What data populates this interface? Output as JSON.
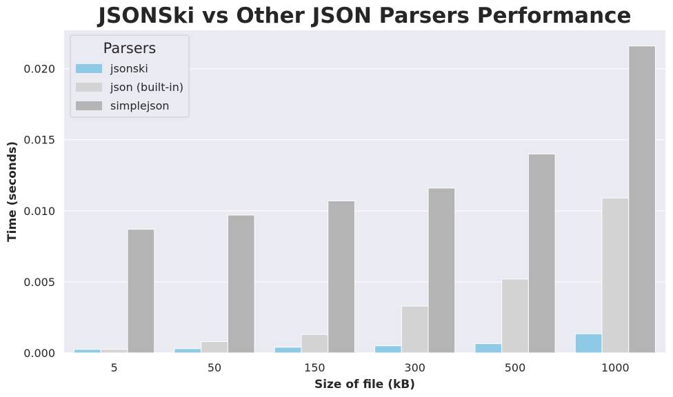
{
  "chart_data": {
    "type": "bar",
    "title": "JSONSki vs Other JSON Parsers Performance",
    "xlabel": "Size of file (kB)",
    "ylabel": "Time (seconds)",
    "categories": [
      "5",
      "50",
      "150",
      "300",
      "500",
      "1000"
    ],
    "ylim": [
      0,
      0.0227
    ],
    "yticks": [
      "0.000",
      "0.005",
      "0.010",
      "0.015",
      "0.020"
    ],
    "grid": true,
    "legend": {
      "title": "Parsers",
      "position": "top-left"
    },
    "series": [
      {
        "name": "jsonski",
        "color": "#8ecae6",
        "values": [
          0.00025,
          0.0003,
          0.0004,
          0.0005,
          0.00065,
          0.00135
        ]
      },
      {
        "name": "json (built-in)",
        "color": "#d3d3d3",
        "values": [
          0.00025,
          0.0008,
          0.0013,
          0.0033,
          0.0052,
          0.0109
        ]
      },
      {
        "name": "simplejson",
        "color": "#b4b4b4",
        "values": [
          0.0087,
          0.0097,
          0.0107,
          0.0116,
          0.014,
          0.0216
        ]
      }
    ]
  }
}
